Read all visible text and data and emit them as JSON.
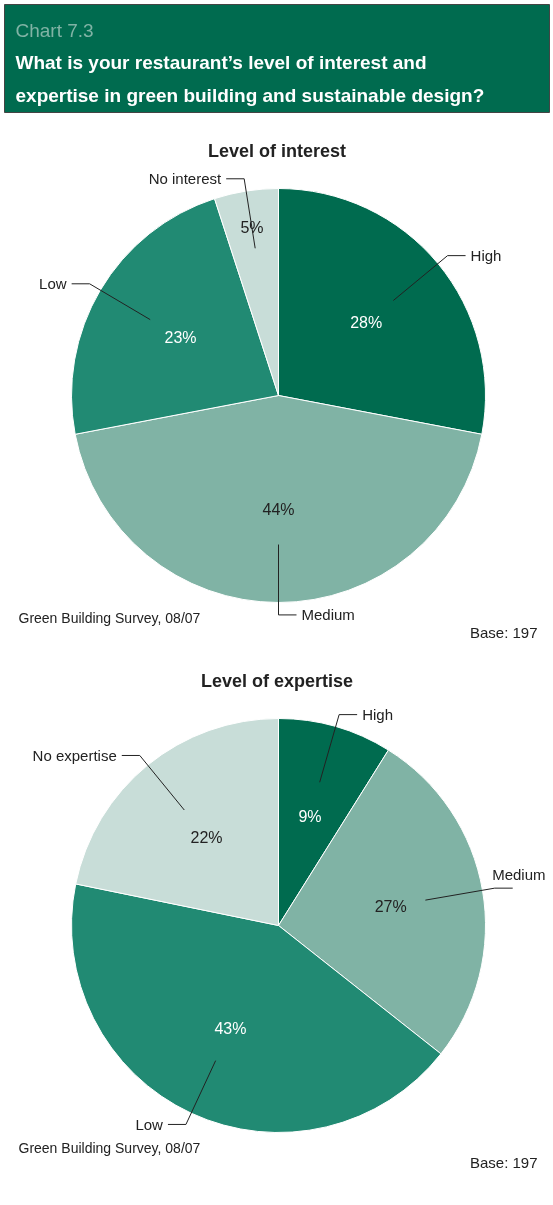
{
  "chart_data": [
    {
      "type": "pie",
      "title": "Level of interest",
      "categories": [
        "High",
        "Medium",
        "Low",
        "No interest"
      ],
      "values": [
        28,
        44,
        23,
        5
      ],
      "colors": [
        "#006b4f",
        "#80b3a5",
        "#218a73",
        "#c8ddd8"
      ],
      "value_labels": [
        "28%",
        "44%",
        "23%",
        "5%"
      ],
      "legend": false,
      "annotations": [
        "Chart 7.3",
        "What is your restaurant’s level of interest and expertise in green building and sustainable design?",
        "Green Building Survey, 08/07",
        "Base: 197"
      ]
    },
    {
      "type": "pie",
      "title": "Level of expertise",
      "categories": [
        "High",
        "Medium",
        "Low",
        "No expertise"
      ],
      "values": [
        9,
        27,
        43,
        22
      ],
      "colors": [
        "#006b4f",
        "#80b3a5",
        "#218a73",
        "#c8ddd8"
      ],
      "value_labels": [
        "9%",
        "27%",
        "43%",
        "22%"
      ],
      "legend": false,
      "annotations": [
        "Green Building Survey, 08/07",
        "Base: 197"
      ]
    }
  ]
}
